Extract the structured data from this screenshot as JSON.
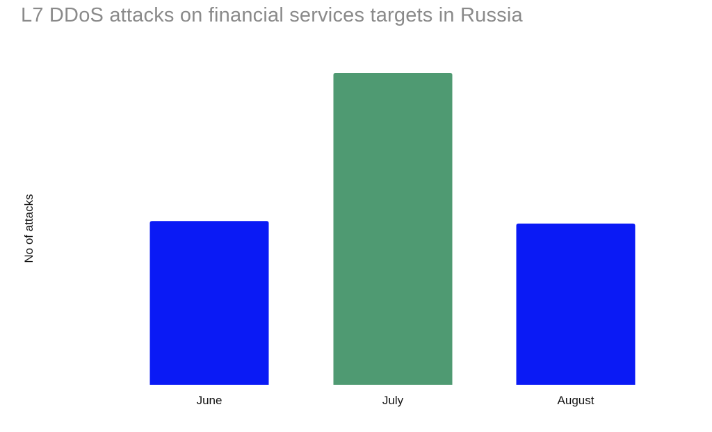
{
  "chart_data": {
    "type": "bar",
    "title": "L7 DDoS attacks on financial services targets in Russia",
    "xlabel": "",
    "ylabel": "No of attacks",
    "categories": [
      "June",
      "July",
      "August"
    ],
    "values": [
      52.5,
      100,
      51.7
    ],
    "colors": [
      "#0a1af5",
      "#4f9a72",
      "#0a1af5"
    ],
    "ylim": [
      0,
      100
    ],
    "grid": false,
    "legend": "none"
  }
}
